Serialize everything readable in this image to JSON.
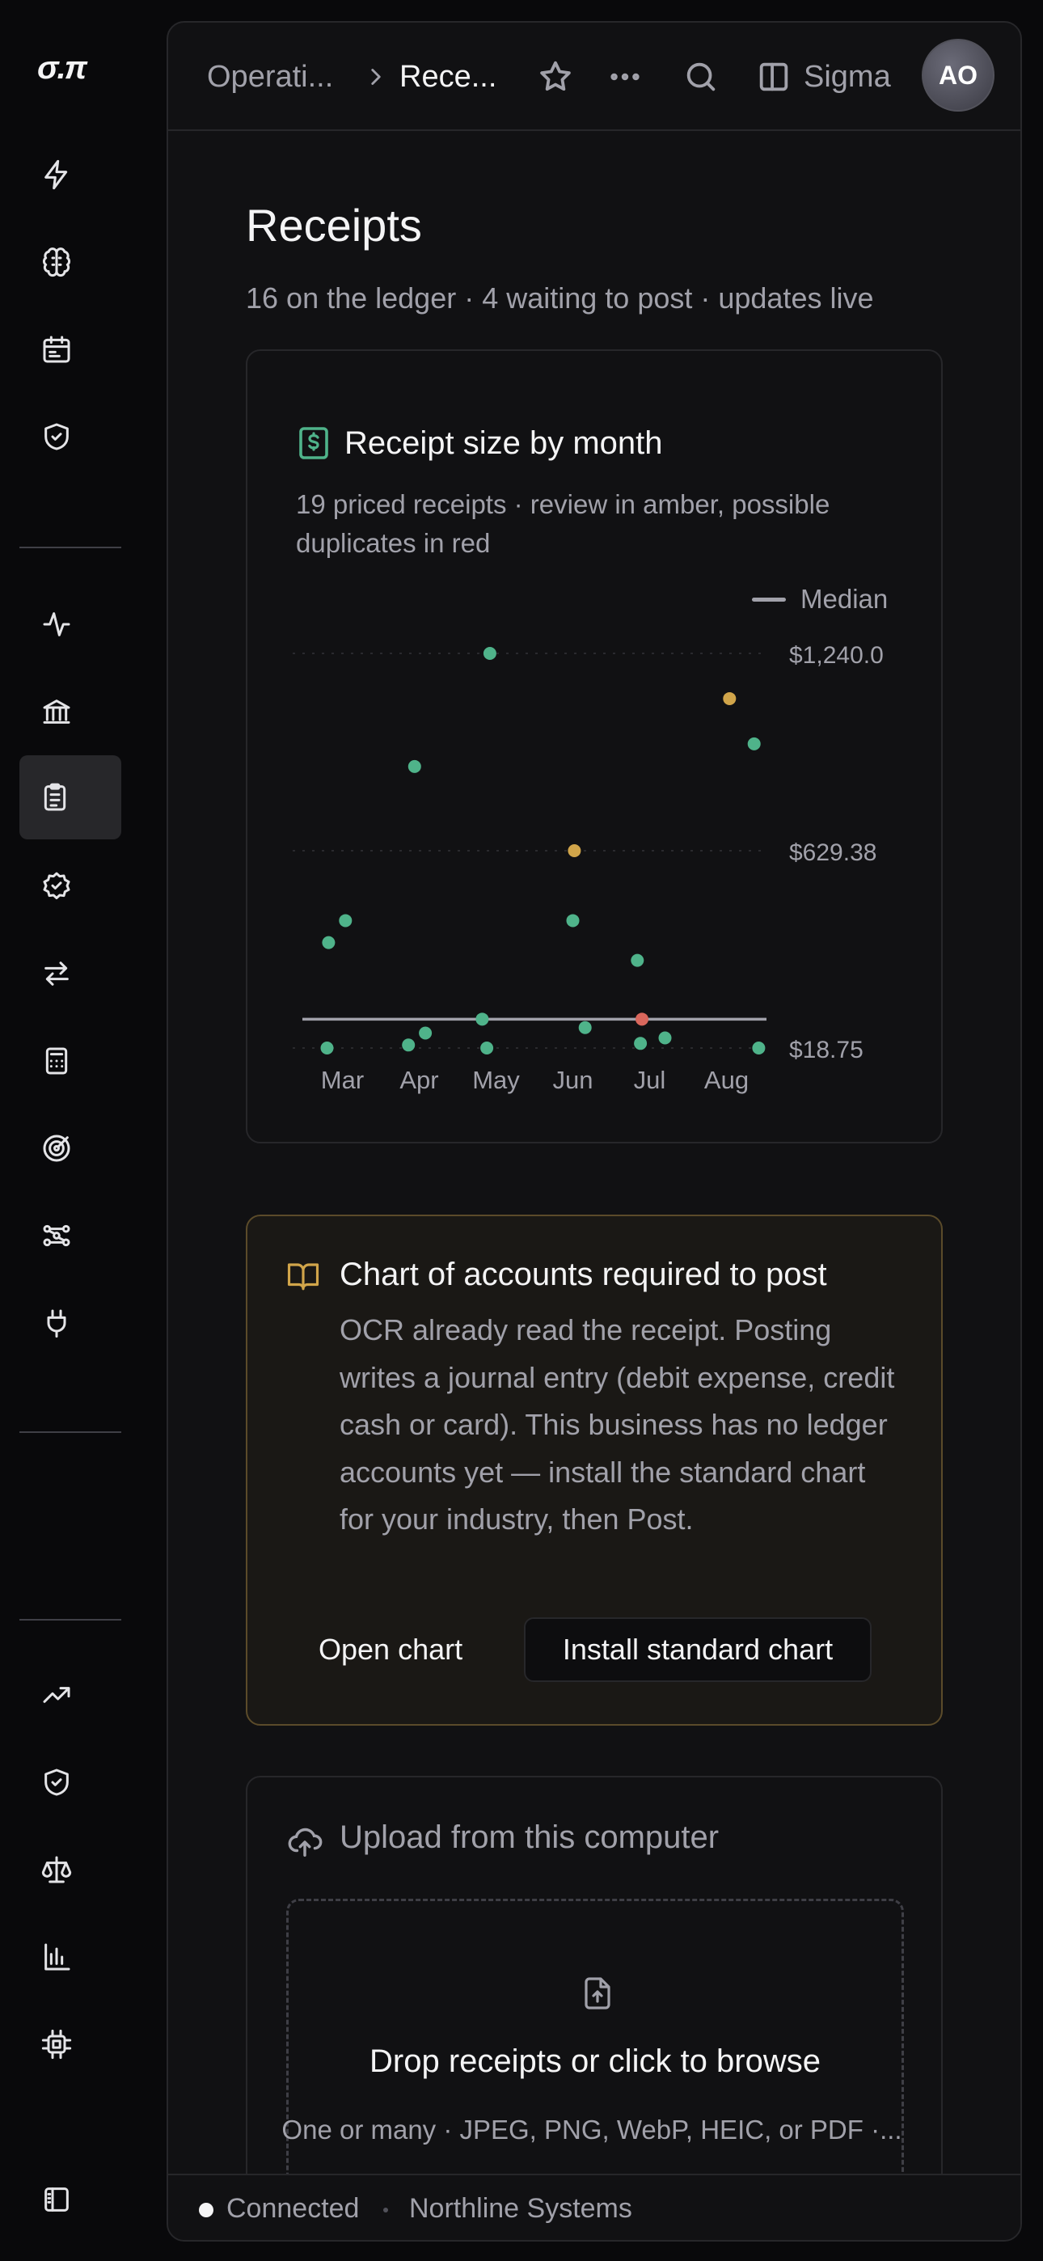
{
  "app": {
    "logo": "σ.π"
  },
  "topbar": {
    "breadcrumb_parent": "Operati...",
    "breadcrumb_current": "Rece...",
    "workspace": "Sigma",
    "avatar_initials": "AO"
  },
  "page": {
    "title": "Receipts",
    "subtitle": "16 on the ledger · 4 waiting to post · updates live"
  },
  "chart_card": {
    "title": "Receipt size by month",
    "description": "19 priced receipts · review in amber, possible duplicates in red",
    "legend_label": "Median"
  },
  "chart_data": {
    "type": "scatter",
    "x_categories": [
      "Mar",
      "Apr",
      "May",
      "Jun",
      "Jul",
      "Aug"
    ],
    "y_ticks": [
      "$1,240.0",
      "$629.38",
      "$18.75"
    ],
    "ylim": [
      18.75,
      1240.0
    ],
    "median": 108,
    "colors": {
      "normal": "#4fb38a",
      "review": "#d1a54a",
      "duplicate": "#d9675c",
      "median": "#a1a1aa"
    },
    "points": [
      {
        "x": 0.8,
        "y": 18.75,
        "status": "normal"
      },
      {
        "x": 0.82,
        "y": 345,
        "status": "normal"
      },
      {
        "x": 1.04,
        "y": 413,
        "status": "normal"
      },
      {
        "x": 1.86,
        "y": 28,
        "status": "normal"
      },
      {
        "x": 2.08,
        "y": 65,
        "status": "normal"
      },
      {
        "x": 1.94,
        "y": 890,
        "status": "normal"
      },
      {
        "x": 2.82,
        "y": 108,
        "status": "normal"
      },
      {
        "x": 2.88,
        "y": 18.75,
        "status": "normal"
      },
      {
        "x": 2.92,
        "y": 1240.0,
        "status": "normal"
      },
      {
        "x": 4.0,
        "y": 413,
        "status": "normal"
      },
      {
        "x": 4.02,
        "y": 629.38,
        "status": "review"
      },
      {
        "x": 4.16,
        "y": 82,
        "status": "normal"
      },
      {
        "x": 4.84,
        "y": 290,
        "status": "normal"
      },
      {
        "x": 4.88,
        "y": 33,
        "status": "normal"
      },
      {
        "x": 4.9,
        "y": 108,
        "status": "duplicate"
      },
      {
        "x": 5.2,
        "y": 50,
        "status": "normal"
      },
      {
        "x": 6.04,
        "y": 1100,
        "status": "review"
      },
      {
        "x": 6.36,
        "y": 960,
        "status": "normal"
      },
      {
        "x": 6.42,
        "y": 18.75,
        "status": "normal"
      }
    ],
    "grid": true,
    "legend_position": "top-right"
  },
  "callout": {
    "title": "Chart of accounts required to post",
    "body": "OCR already read the receipt. Posting writes a journal entry (debit expense, credit cash or card). This business has no ledger accounts yet — install the standard chart for your industry, then Post.",
    "secondary_button": "Open chart",
    "primary_button": "Install standard chart"
  },
  "upload": {
    "title": "Upload from this computer",
    "drop_title": "Drop receipts or click to browse",
    "drop_subtitle": "One or many · JPEG, PNG, WebP, HEIC, or PDF ·..."
  },
  "status_bar": {
    "connection": "Connected",
    "organization": "Northline Systems"
  }
}
